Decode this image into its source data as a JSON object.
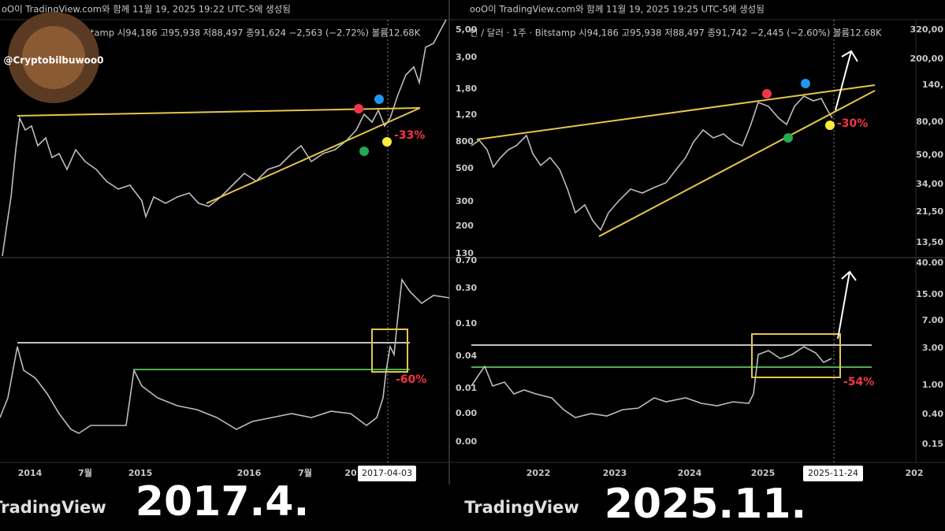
{
  "left_panel": {
    "watermark": "oO이 TradingView.com와 함께 11월 19, 2025 19:22 UTC-5에 생성됨",
    "legend": "tamp 시94,186 고95,938 저88,497 종91,624 −2,563 (−2.72%) 볼륨12.68K",
    "handle": "@Cryptobilbuwoo0",
    "annotations": [
      "-33%",
      "-60%"
    ],
    "time_axis": [
      "2014",
      "7월",
      "2015",
      "2016",
      "7월",
      "20"
    ],
    "cursor_date": "2017-04-03",
    "brand": "TradingView",
    "caption": "2017.4."
  },
  "right_panel": {
    "watermark": "ooO이 TradingView.com와 함께 11월 19, 2025 19:25 UTC-5에 생성됨",
    "legend": "인 / 달러 · 1주 · Bitstamp 시94,186 고95,938 저88,497 종91,742 −2,445 (−2.60%) 볼륨12.68K",
    "annotations": [
      "-30%",
      "-54%"
    ],
    "price_axis_left": [
      "5,00",
      "3,00",
      "1,80",
      "1,20",
      "800",
      "500",
      "300",
      "200",
      "130"
    ],
    "oscillator_axis_left": [
      "0.70",
      "0.30",
      "0.10",
      "0.04",
      "0.01",
      "0.00",
      "0.00"
    ],
    "price_axis_right": [
      "320,00",
      "200,00",
      "140,",
      "80,00",
      "50,00",
      "34,00",
      "21,50",
      "13,50"
    ],
    "oscillator_axis_right": [
      "40.00",
      "15.00",
      "7.00",
      "3.00",
      "1.00",
      "0.40",
      "0.15"
    ],
    "time_axis": [
      "2022",
      "2023",
      "2024",
      "2025",
      "202"
    ],
    "cursor_date": "2025-11-24",
    "brand": "TradingView",
    "caption": "2025.11."
  }
}
